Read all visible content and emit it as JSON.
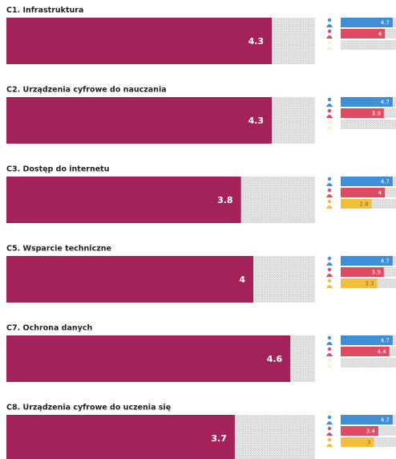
{
  "chart_data": [
    {
      "type": "bar",
      "title": "C1. Infrastruktura",
      "score": 4.3,
      "color": "#a3225a",
      "xlim": [
        0,
        5
      ],
      "values": [
        4.7,
        4,
        null
      ],
      "colors": [
        "#3e8ed8",
        "#e04b64",
        "#f3be3c"
      ]
    },
    {
      "type": "bar",
      "title": "C2. Urządzenia cyfrowe do nauczania",
      "score": 4.3,
      "color": "#a3225a",
      "xlim": [
        0,
        5
      ],
      "values": [
        4.7,
        3.9,
        null
      ],
      "colors": [
        "#3e8ed8",
        "#e04b64",
        "#f3be3c"
      ]
    },
    {
      "type": "bar",
      "title": "C3. Dostęp do internetu",
      "score": 3.8,
      "color": "#a3225a",
      "xlim": [
        0,
        5
      ],
      "values": [
        4.7,
        4,
        2.8
      ],
      "colors": [
        "#3e8ed8",
        "#e04b64",
        "#f3be3c"
      ]
    },
    {
      "type": "bar",
      "title": "C5. Wsparcie techniczne",
      "score": 4,
      "color": "#a3225a",
      "xlim": [
        0,
        5
      ],
      "values": [
        4.7,
        3.9,
        3.3
      ],
      "colors": [
        "#3e8ed8",
        "#e04b64",
        "#f3be3c"
      ]
    },
    {
      "type": "bar",
      "title": "C7. Ochrona danych",
      "score": 4.6,
      "color": "#a3225a",
      "xlim": [
        0,
        5
      ],
      "values": [
        4.7,
        4.4,
        null
      ],
      "colors": [
        "#3e8ed8",
        "#e04b64",
        "#f3be3c"
      ]
    },
    {
      "type": "bar",
      "title": "C8. Urządzenia cyfrowe do uczenia się",
      "score": 3.7,
      "color": "#a3225a",
      "xlim": [
        0,
        5
      ],
      "values": [
        4.7,
        3.4,
        3
      ],
      "colors": [
        "#3e8ed8",
        "#e04b64",
        "#f3be3c"
      ]
    }
  ]
}
